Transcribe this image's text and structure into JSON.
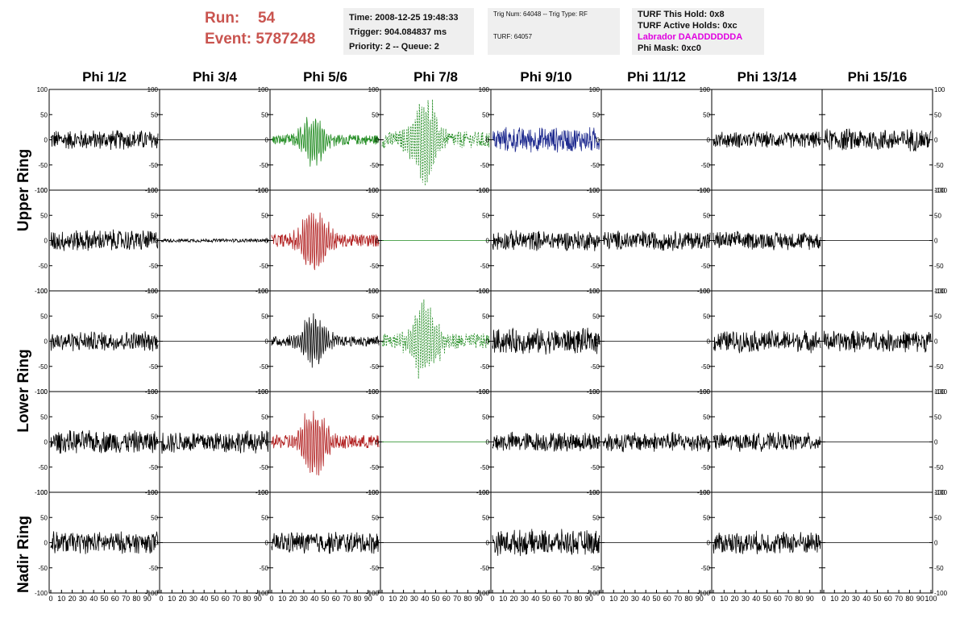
{
  "header": {
    "run_label": "Run:",
    "run_value": "54",
    "event_label": "Event:",
    "event_value": "5787248"
  },
  "time_box": {
    "time": "Time: 2008-12-25 19:48:33",
    "trigger": "Trigger: 904.084837 ms",
    "priority": "Priority: 2 -- Queue: 2"
  },
  "trig_box": {
    "trig": "Trig Num: 64048 -- Trig Type: RF",
    "turf": "TURF: 64057"
  },
  "turf_box": {
    "hold": "TURF This Hold: 0x8",
    "active": "TURF Active Holds: 0xc",
    "labrador": "Labrador DAADDDDDDA",
    "phi_mask": "Phi Mask: 0xc0"
  },
  "colors": {
    "header_red": "#c9544f",
    "magenta": "#e000e0",
    "trace_black": "#000000",
    "trace_green": "#1e8a1e",
    "trace_red": "#b22222",
    "trace_blue": "#1f2b8f"
  },
  "phi_headers": [
    "Phi 1/2",
    "Phi 3/4",
    "Phi 5/6",
    "Phi 7/8",
    "Phi 9/10",
    "Phi 11/12",
    "Phi 13/14",
    "Phi 15/16"
  ],
  "ring_labels": [
    "Upper Ring",
    "Lower Ring",
    "Nadir Ring"
  ],
  "chart_data": {
    "type": "line",
    "xlim": [
      0,
      100
    ],
    "ylim": [
      -100,
      100
    ],
    "x_ticks": [
      "0",
      "10",
      "20",
      "30",
      "40",
      "50",
      "60",
      "70",
      "80",
      "90",
      "100"
    ],
    "y_ticks": [
      "100",
      "50",
      "0",
      "-50",
      "-100"
    ],
    "rows": [
      [
        {
          "kind": "noise",
          "amp": 22,
          "color": "black"
        },
        {
          "kind": "flat",
          "color": "black"
        },
        {
          "kind": "pulse",
          "amp": 55,
          "color": "green"
        },
        {
          "kind": "pulse_dash",
          "amp": 90,
          "color": "green"
        },
        {
          "kind": "noise",
          "amp": 28,
          "color": "blue"
        },
        {
          "kind": "flat",
          "color": "black"
        },
        {
          "kind": "noise",
          "amp": 18,
          "color": "black"
        },
        {
          "kind": "noise",
          "amp": 25,
          "color": "black"
        }
      ],
      [
        {
          "kind": "noise",
          "amp": 24,
          "color": "black"
        },
        {
          "kind": "noise",
          "amp": 4,
          "color": "black"
        },
        {
          "kind": "pulse",
          "amp": 70,
          "color": "red"
        },
        {
          "kind": "flat",
          "color": "green"
        },
        {
          "kind": "noise",
          "amp": 22,
          "color": "black"
        },
        {
          "kind": "noise",
          "amp": 22,
          "color": "black"
        },
        {
          "kind": "noise",
          "amp": 20,
          "color": "black"
        },
        {
          "kind": "flat",
          "color": "black"
        }
      ],
      [
        {
          "kind": "noise",
          "amp": 22,
          "color": "black"
        },
        {
          "kind": "flat",
          "color": "black"
        },
        {
          "kind": "pulse",
          "amp": 55,
          "color": "black"
        },
        {
          "kind": "pulse_dash",
          "amp": 85,
          "color": "green"
        },
        {
          "kind": "noise",
          "amp": 28,
          "color": "black"
        },
        {
          "kind": "flat",
          "color": "black"
        },
        {
          "kind": "noise",
          "amp": 24,
          "color": "black"
        },
        {
          "kind": "noise",
          "amp": 24,
          "color": "black"
        }
      ],
      [
        {
          "kind": "noise",
          "amp": 25,
          "color": "black"
        },
        {
          "kind": "noise",
          "amp": 25,
          "color": "black"
        },
        {
          "kind": "pulse",
          "amp": 75,
          "color": "red"
        },
        {
          "kind": "flat",
          "color": "green"
        },
        {
          "kind": "noise",
          "amp": 22,
          "color": "black"
        },
        {
          "kind": "noise",
          "amp": 22,
          "color": "black"
        },
        {
          "kind": "noise",
          "amp": 20,
          "color": "black"
        },
        {
          "kind": "flat",
          "color": "black"
        }
      ],
      [
        {
          "kind": "noise",
          "amp": 24,
          "color": "black"
        },
        {
          "kind": "flat",
          "color": "black"
        },
        {
          "kind": "noise",
          "amp": 25,
          "color": "black"
        },
        {
          "kind": "flat",
          "color": "black"
        },
        {
          "kind": "noise",
          "amp": 28,
          "color": "black"
        },
        {
          "kind": "flat",
          "color": "black"
        },
        {
          "kind": "noise",
          "amp": 25,
          "color": "black"
        },
        {
          "kind": "flat",
          "color": "black"
        }
      ]
    ]
  }
}
